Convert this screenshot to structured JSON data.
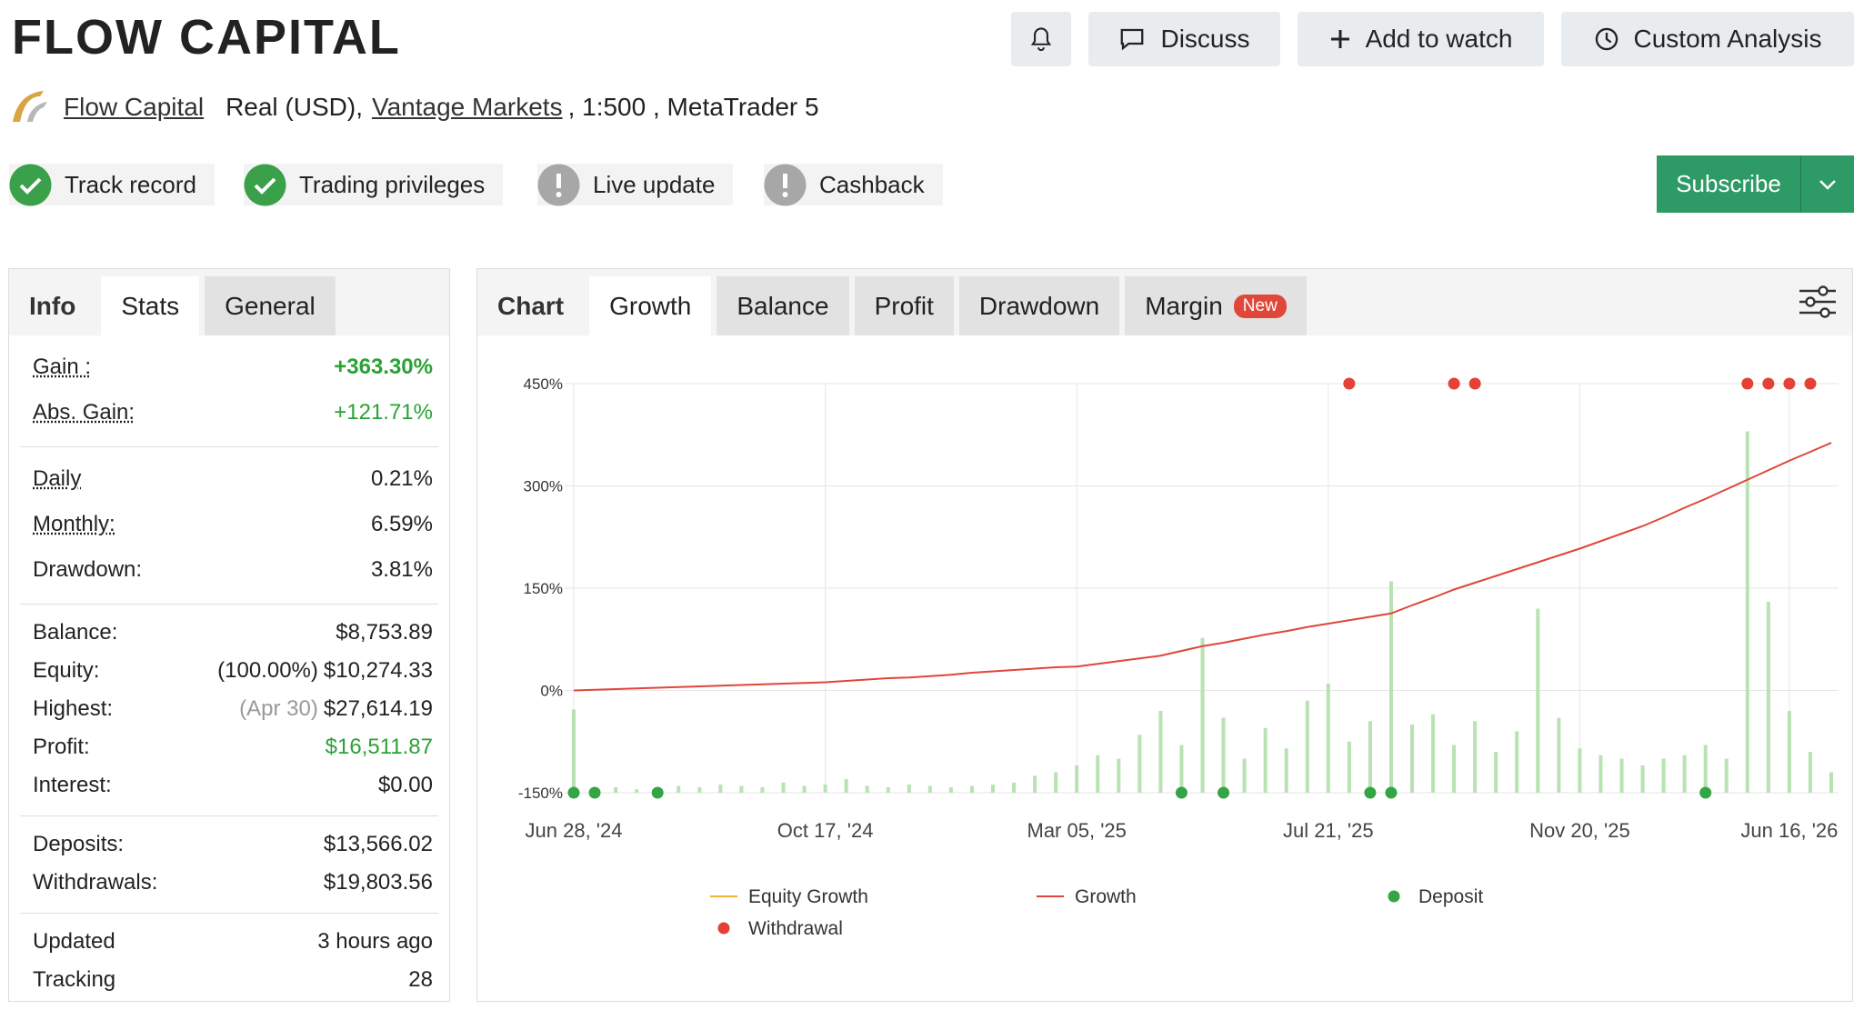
{
  "header": {
    "title": "FLOW CAPITAL",
    "buttons": [
      "Discuss",
      "Add to watch",
      "Custom Analysis"
    ],
    "owner": "Flow Capital",
    "account_type": "Real (USD),",
    "broker": "Vantage Markets",
    "account_details": ", 1:500 , MetaTrader 5"
  },
  "badges": [
    {
      "label": "Track record",
      "status": "ok"
    },
    {
      "label": "Trading privileges",
      "status": "ok"
    },
    {
      "label": "Live update",
      "status": "warn"
    },
    {
      "label": "Cashback",
      "status": "warn"
    }
  ],
  "subscribe": "Subscribe",
  "stats_panel": {
    "tabs": [
      "Info",
      "Stats",
      "General"
    ],
    "groups": [
      [
        {
          "label": "Gain :",
          "value": "+363.30%",
          "underline": true,
          "color": "green",
          "bold": true
        },
        {
          "label": "Abs. Gain:",
          "value": "+121.71%",
          "underline": true,
          "color": "green"
        }
      ],
      [
        {
          "label": "Daily",
          "value": "0.21%",
          "underline": true
        },
        {
          "label": "Monthly:",
          "value": "6.59%",
          "underline": true
        },
        {
          "label": "Drawdown:",
          "value": "3.81%"
        }
      ],
      [
        {
          "label": "Balance:",
          "value": "$8,753.89"
        },
        {
          "label": "Equity:",
          "note": "(100.00%)",
          "value": "$10,274.33"
        },
        {
          "label": "Highest:",
          "note": "(Apr 30)",
          "note_color": "grey",
          "value": "$27,614.19"
        },
        {
          "label": "Profit:",
          "value": "$16,511.87",
          "color": "green"
        },
        {
          "label": "Interest:",
          "value": "$0.00"
        }
      ],
      [
        {
          "label": "Deposits:",
          "value": "$13,566.02"
        },
        {
          "label": "Withdrawals:",
          "value": "$19,803.56"
        }
      ],
      [
        {
          "label": "Updated",
          "value": "3 hours ago"
        },
        {
          "label": "Tracking",
          "value": "28"
        }
      ]
    ]
  },
  "chart_panel": {
    "tabs": [
      "Chart",
      "Growth",
      "Balance",
      "Profit",
      "Drawdown",
      "Margin"
    ],
    "new_badge": "New"
  },
  "chart_data": {
    "type": "line",
    "categories": [
      "Jun 28, '24",
      null,
      null,
      null,
      null,
      null,
      null,
      null,
      null,
      null,
      null,
      null,
      "Oct 17, '24",
      null,
      null,
      null,
      null,
      null,
      null,
      null,
      null,
      null,
      null,
      null,
      "Mar 05, '25",
      null,
      null,
      null,
      null,
      null,
      null,
      null,
      null,
      null,
      null,
      null,
      "Jul 21, '25",
      null,
      null,
      null,
      null,
      null,
      null,
      null,
      null,
      null,
      null,
      null,
      "Nov 20, '25",
      null,
      null,
      null,
      null,
      null,
      null,
      null,
      null,
      null,
      "Jun 16, '26",
      null,
      null
    ],
    "ylim": [
      -150,
      450
    ],
    "yticks": [
      {
        "value": -150,
        "label": "-150%"
      },
      {
        "value": 0,
        "label": "0%"
      },
      {
        "value": 150,
        "label": "150%"
      },
      {
        "value": 300,
        "label": "300%"
      },
      {
        "value": 450,
        "label": "450%"
      }
    ],
    "grid": true,
    "series": [
      {
        "name": "Equity Growth",
        "kind": "line",
        "color": "#f2b233",
        "values": [
          null,
          null,
          null,
          null,
          null,
          null,
          null,
          null,
          null,
          null,
          null,
          null,
          null,
          null,
          null,
          null,
          null,
          null,
          null,
          null,
          null,
          null,
          null,
          null,
          null,
          null,
          null,
          null,
          null,
          null,
          null,
          null,
          null,
          null,
          null,
          null,
          null,
          null,
          null,
          null,
          null,
          null,
          null,
          null,
          null,
          null,
          null,
          null,
          null,
          null,
          null,
          null,
          null,
          null,
          null,
          null,
          null,
          null,
          null,
          null,
          null
        ]
      },
      {
        "name": "Growth",
        "kind": "line",
        "color": "#e0463a",
        "values": [
          0,
          1,
          2,
          3,
          4,
          5,
          6,
          7,
          8,
          9,
          10,
          11,
          12,
          14,
          16,
          18,
          19,
          21,
          23,
          26,
          28,
          30,
          32,
          34,
          35,
          39,
          43,
          47,
          51,
          58,
          65,
          70,
          76,
          82,
          87,
          93,
          98,
          103,
          108,
          113,
          125,
          136,
          148,
          158,
          168,
          178,
          188,
          198,
          208,
          219,
          230,
          241,
          254,
          268,
          281,
          295,
          309,
          323,
          337,
          350,
          363.3
        ]
      },
      {
        "name": "Deposit",
        "kind": "dot",
        "color": "#34a544",
        "values": [
          -150,
          -150,
          null,
          null,
          -150,
          null,
          null,
          null,
          null,
          null,
          null,
          null,
          null,
          null,
          null,
          null,
          null,
          null,
          null,
          null,
          null,
          null,
          null,
          null,
          null,
          null,
          null,
          null,
          null,
          -150,
          null,
          -150,
          null,
          null,
          null,
          null,
          null,
          null,
          -150,
          -150,
          null,
          null,
          null,
          null,
          null,
          null,
          null,
          null,
          null,
          null,
          null,
          null,
          null,
          null,
          -150,
          null,
          null,
          null,
          null,
          null,
          null
        ]
      },
      {
        "name": "Withdrawal",
        "kind": "dot",
        "color": "#e34234",
        "values": [
          null,
          null,
          null,
          null,
          null,
          null,
          null,
          null,
          null,
          null,
          null,
          null,
          null,
          null,
          null,
          null,
          null,
          null,
          null,
          null,
          null,
          null,
          null,
          null,
          null,
          null,
          null,
          null,
          null,
          null,
          null,
          null,
          null,
          null,
          null,
          null,
          null,
          450,
          null,
          null,
          null,
          null,
          450,
          450,
          null,
          null,
          null,
          null,
          null,
          null,
          null,
          null,
          null,
          null,
          null,
          null,
          450,
          450,
          450,
          450,
          null
        ]
      }
    ],
    "bars": {
      "color": "#b9e2b3",
      "base": -150,
      "values": [
        -28,
        -145,
        -142,
        -145,
        -143,
        -140,
        -142,
        -138,
        -140,
        -142,
        -135,
        -140,
        -138,
        -130,
        -140,
        -142,
        -138,
        -140,
        -142,
        -140,
        -138,
        -135,
        -125,
        -120,
        -110,
        -95,
        -100,
        -65,
        -30,
        -80,
        77,
        -40,
        -100,
        -55,
        -85,
        -15,
        10,
        -75,
        -45,
        160,
        -50,
        -35,
        -80,
        -45,
        -90,
        -60,
        120,
        -40,
        -85,
        -95,
        -100,
        -110,
        -100,
        -95,
        -80,
        -100,
        380,
        130,
        -30,
        -90,
        -120
      ]
    }
  }
}
